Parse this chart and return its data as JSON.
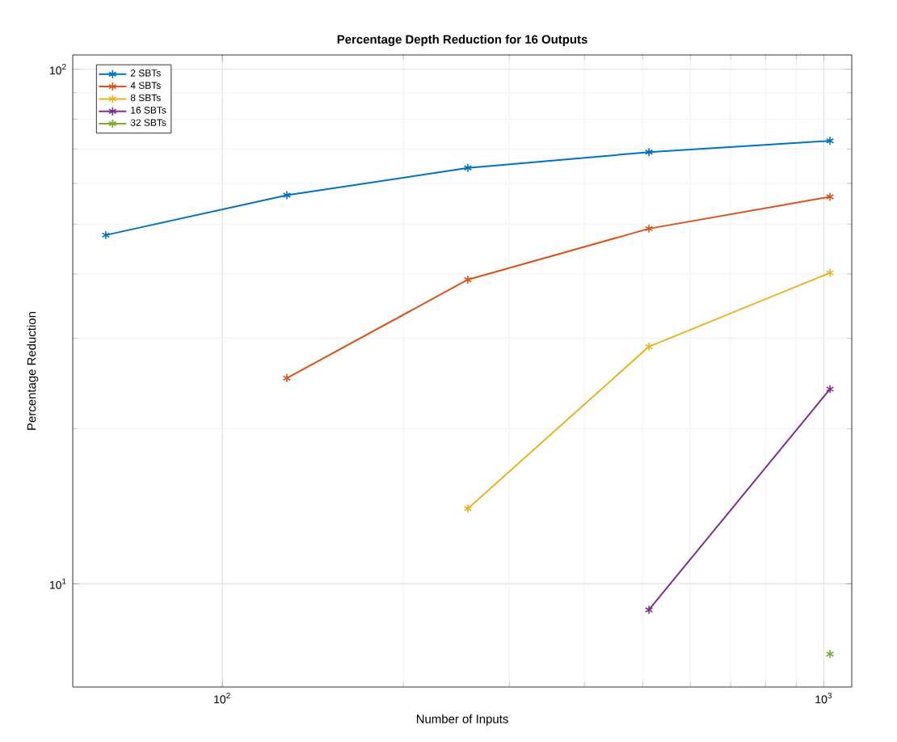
{
  "chart_data": {
    "type": "line",
    "title": "Percentage Depth Reduction for 16 Outputs",
    "xlabel": "Number of Inputs",
    "ylabel": "Percentage Reduction",
    "log": "xy",
    "grid": true,
    "legend": "top left",
    "marker": "cross",
    "line_style": "solid",
    "xlim": [
      56.4,
      1113
    ],
    "ylim": [
      6.3,
      106.6
    ],
    "xticks": [
      {
        "value": 100,
        "label": "10$^{2}$"
      },
      {
        "value": 1000,
        "label": "10$^{3}$"
      }
    ],
    "yticks": [
      {
        "value": 10,
        "label": "10$^{1}$"
      },
      {
        "value": 100,
        "label": "10$^{2}$"
      }
    ],
    "x": [
      64,
      128,
      256,
      512,
      1024
    ],
    "series": [
      {
        "name": "2 SBTs",
        "color": "#0072bd",
        "values": [
          47.6,
          56.9,
          64.3,
          69.0,
          72.6
        ]
      },
      {
        "name": "4 SBTs",
        "color": "#d95319",
        "values": [
          null,
          25.1,
          39.0,
          49.0,
          56.5
        ]
      },
      {
        "name": "8 SBTs",
        "color": "#edb120",
        "values": [
          null,
          null,
          14.0,
          28.9,
          40.2
        ]
      },
      {
        "name": "16 SBTs",
        "color": "#7e2f8e",
        "values": [
          null,
          null,
          null,
          8.9,
          23.9
        ]
      },
      {
        "name": "32 SBTs",
        "color": "#77ac30",
        "values": [
          null,
          null,
          null,
          null,
          7.3
        ]
      }
    ]
  }
}
